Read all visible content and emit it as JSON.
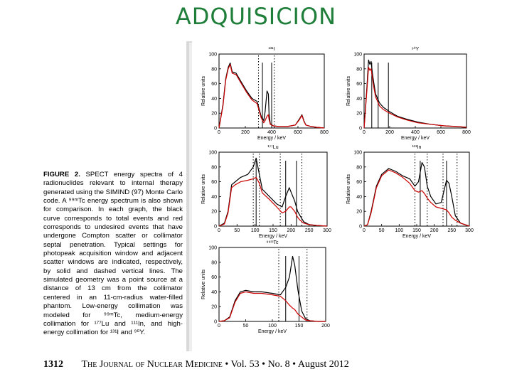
{
  "slide": {
    "title": "ADQUISICION"
  },
  "caption": {
    "label": "FIGURE 2.",
    "text": " SPECT energy spectra of 4 radionuclides relevant to internal therapy generated using the SIMIND (97) Monte Carlo code. A ⁹⁹ᵐTc energy spectrum is also shown for comparison. In each graph, the black curve corresponds to total events and red corresponds to undesired events that have undergone Compton scatter or collimator septal penetration. Typical settings for photopeak acquisition window and adjacent scatter windows are indicated, respectively, by solid and dashed vertical lines. The simulated geometry was a point source at a distance of 13 cm from the collimator centered in an 11-cm-radius water-filled phantom. Low-energy collimation was modeled for ⁹⁹ᵐTc, medium-energy collimation for ¹⁷⁷Lu and ¹¹¹In, and high-energy collimation for ¹³¹I and ⁹⁰Y."
  },
  "footer": {
    "page": "1312",
    "journal": "The Journal of Nuclear Medicine",
    "volume": "• Vol. 53 • No. 8 • August 2012"
  },
  "chart_data": [
    {
      "type": "line",
      "title": "¹³¹I",
      "xlabel": "Energy / keV",
      "ylabel": "Relative units",
      "xlim": [
        0,
        800
      ],
      "ylim": [
        0,
        100
      ],
      "xticks": [
        0,
        200,
        400,
        600,
        800
      ],
      "yticks": [
        0,
        20,
        40,
        60,
        80,
        100
      ],
      "solid_lines": [
        330,
        400
      ],
      "dashed_lines": [
        300,
        420
      ],
      "series": [
        {
          "color": "#000000",
          "x": [
            0,
            30,
            50,
            70,
            85,
            100,
            130,
            170,
            210,
            250,
            290,
            320,
            340,
            350,
            365,
            375,
            380,
            390,
            410,
            450,
            520,
            580,
            610,
            630,
            645,
            660,
            700,
            740,
            800
          ],
          "y": [
            0,
            32,
            66,
            82,
            88,
            76,
            74,
            62,
            50,
            40,
            36,
            16,
            10,
            22,
            50,
            46,
            20,
            6,
            3,
            2,
            2,
            4,
            12,
            18,
            10,
            4,
            2,
            1,
            0
          ]
        },
        {
          "color": "#cc0000",
          "x": [
            0,
            30,
            50,
            70,
            85,
            100,
            130,
            170,
            210,
            250,
            290,
            320,
            340,
            350,
            365,
            375,
            380,
            390,
            410,
            450,
            520,
            580,
            610,
            630,
            645,
            660,
            700,
            740,
            800
          ],
          "y": [
            0,
            30,
            64,
            80,
            86,
            74,
            72,
            60,
            48,
            38,
            33,
            14,
            7,
            10,
            16,
            18,
            12,
            5,
            3,
            2,
            2,
            4,
            11,
            17,
            9,
            4,
            2,
            1,
            0
          ]
        }
      ]
    },
    {
      "type": "line",
      "title": "⁹⁰Y",
      "xlabel": "Energy / keV",
      "ylabel": "Relative units",
      "xlim": [
        0,
        800
      ],
      "ylim": [
        0,
        100
      ],
      "xticks": [
        0,
        200,
        400,
        600,
        800
      ],
      "yticks": [
        0,
        20,
        40,
        60,
        80,
        100
      ],
      "solid_lines": [
        60,
        110,
        190
      ],
      "dashed_lines": [],
      "series": [
        {
          "color": "#000000",
          "x": [
            0,
            20,
            35,
            45,
            55,
            65,
            75,
            90,
            120,
            150,
            200,
            260,
            330,
            420,
            520,
            620,
            720,
            800
          ],
          "y": [
            0,
            50,
            92,
            86,
            90,
            74,
            62,
            46,
            34,
            28,
            22,
            16,
            12,
            8,
            5,
            3,
            2,
            1
          ]
        },
        {
          "color": "#cc0000",
          "x": [
            0,
            20,
            35,
            45,
            55,
            65,
            75,
            90,
            120,
            150,
            200,
            260,
            330,
            420,
            520,
            620,
            720,
            800
          ],
          "y": [
            0,
            46,
            82,
            78,
            80,
            68,
            56,
            42,
            30,
            25,
            20,
            15,
            11,
            7,
            5,
            3,
            2,
            1
          ]
        }
      ]
    },
    {
      "type": "line",
      "title": "¹⁷⁷Lu",
      "xlabel": "Energy / keV",
      "ylabel": "Relative units",
      "xlim": [
        0,
        300
      ],
      "ylim": [
        0,
        100
      ],
      "xticks": [
        0,
        50,
        100,
        150,
        200,
        250,
        300
      ],
      "yticks": [
        0,
        20,
        40,
        60,
        80,
        100
      ],
      "solid_lines": [
        103,
        185,
        215
      ],
      "dashed_lines": [
        95,
        112,
        170,
        230
      ],
      "series": [
        {
          "color": "#000000",
          "x": [
            0,
            15,
            25,
            35,
            45,
            60,
            80,
            95,
            103,
            112,
            120,
            140,
            160,
            175,
            185,
            195,
            200,
            210,
            218,
            225,
            235,
            250,
            270,
            300
          ],
          "y": [
            0,
            4,
            20,
            56,
            60,
            66,
            70,
            80,
            92,
            70,
            50,
            40,
            30,
            26,
            40,
            52,
            46,
            34,
            20,
            14,
            6,
            2,
            1,
            0
          ]
        },
        {
          "color": "#cc0000",
          "x": [
            0,
            15,
            25,
            35,
            45,
            60,
            80,
            95,
            103,
            112,
            120,
            140,
            160,
            175,
            185,
            195,
            200,
            210,
            218,
            225,
            235,
            250,
            270,
            300
          ],
          "y": [
            0,
            3,
            18,
            52,
            56,
            60,
            62,
            64,
            66,
            58,
            45,
            36,
            26,
            18,
            20,
            26,
            26,
            20,
            12,
            8,
            4,
            2,
            1,
            0
          ]
        }
      ]
    },
    {
      "type": "line",
      "title": "¹¹¹In",
      "xlabel": "Energy / keV",
      "ylabel": "Relative units",
      "xlim": [
        0,
        300
      ],
      "ylim": [
        0,
        100
      ],
      "xticks": [
        0,
        50,
        100,
        150,
        200,
        250,
        300
      ],
      "yticks": [
        0,
        20,
        40,
        60,
        80,
        100
      ],
      "solid_lines": [
        160,
        235
      ],
      "dashed_lines": [
        145,
        180,
        225,
        265
      ],
      "series": [
        {
          "color": "#000000",
          "x": [
            0,
            10,
            20,
            35,
            50,
            70,
            90,
            110,
            130,
            145,
            155,
            165,
            172,
            180,
            190,
            205,
            220,
            235,
            242,
            250,
            260,
            275,
            300
          ],
          "y": [
            0,
            2,
            20,
            54,
            70,
            78,
            74,
            68,
            64,
            54,
            60,
            86,
            80,
            54,
            40,
            30,
            32,
            62,
            58,
            40,
            14,
            4,
            0
          ]
        },
        {
          "color": "#cc0000",
          "x": [
            0,
            10,
            20,
            35,
            50,
            70,
            90,
            110,
            130,
            145,
            155,
            165,
            172,
            180,
            190,
            205,
            220,
            235,
            242,
            250,
            260,
            275,
            300
          ],
          "y": [
            0,
            2,
            18,
            52,
            68,
            76,
            72,
            66,
            58,
            48,
            46,
            48,
            44,
            38,
            32,
            26,
            24,
            22,
            18,
            12,
            8,
            4,
            0
          ]
        }
      ]
    },
    {
      "type": "line",
      "title": "⁹⁹ᵐTc",
      "xlabel": "Energy / keV",
      "ylabel": "Relative units",
      "xlim": [
        0,
        200
      ],
      "ylim": [
        0,
        100
      ],
      "xticks": [
        0,
        50,
        100,
        150,
        200
      ],
      "yticks": [
        0,
        20,
        40,
        60,
        80,
        100
      ],
      "solid_lines": [
        125,
        150
      ],
      "dashed_lines": [
        112,
        165
      ],
      "series": [
        {
          "color": "#000000",
          "x": [
            0,
            10,
            20,
            30,
            40,
            50,
            65,
            80,
            100,
            115,
            125,
            132,
            138,
            142,
            148,
            155,
            162,
            170,
            185,
            200
          ],
          "y": [
            0,
            1,
            6,
            28,
            40,
            42,
            40,
            40,
            38,
            36,
            46,
            60,
            88,
            76,
            42,
            14,
            4,
            1,
            0,
            0
          ]
        },
        {
          "color": "#cc0000",
          "x": [
            0,
            10,
            20,
            30,
            40,
            50,
            65,
            80,
            100,
            115,
            125,
            132,
            138,
            142,
            148,
            155,
            162,
            170,
            185,
            200
          ],
          "y": [
            0,
            1,
            5,
            26,
            38,
            40,
            38,
            38,
            36,
            34,
            28,
            22,
            18,
            16,
            10,
            6,
            2,
            1,
            0,
            0
          ]
        }
      ]
    }
  ]
}
